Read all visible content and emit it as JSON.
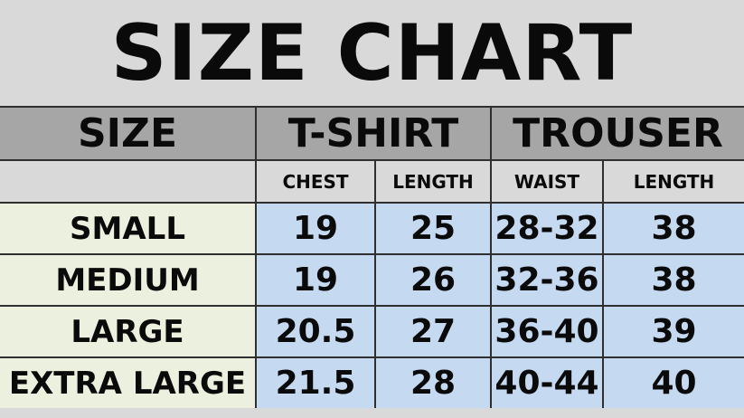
{
  "title": "SIZE CHART",
  "headers": {
    "size": "SIZE",
    "tshirt": "T-SHIRT",
    "trouser": "TROUSER",
    "sub": [
      "",
      "CHEST",
      "LENGTH",
      "WAIST",
      "LENGTH"
    ]
  },
  "rows": [
    {
      "size": "SMALL",
      "chest": "19",
      "tlength": "25",
      "waist": "28-32",
      "length": "38"
    },
    {
      "size": "MEDIUM",
      "chest": "19",
      "tlength": "26",
      "waist": "32-36",
      "length": "38"
    },
    {
      "size": "LARGE",
      "chest": "20.5",
      "tlength": "27",
      "waist": "36-40",
      "length": "39"
    },
    {
      "size": "EXTRA LARGE",
      "chest": "21.5",
      "tlength": "28",
      "waist": "40-44",
      "length": "40"
    }
  ],
  "colors": {
    "header": "#a6a6a6",
    "subheader": "#d9d9d9",
    "size_column": "#ebf1de",
    "values": "#c5d9f1"
  }
}
